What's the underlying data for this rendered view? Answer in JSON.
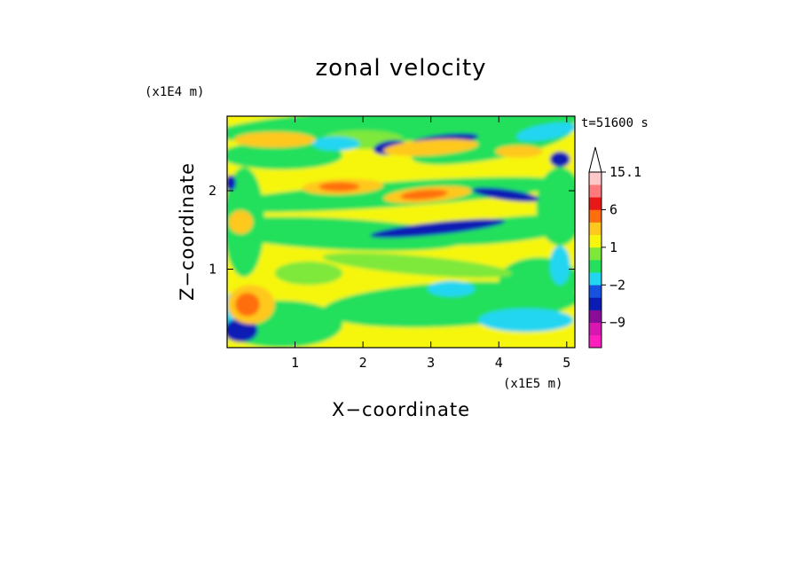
{
  "chart_data": {
    "type": "heatmap",
    "title": "zonal velocity",
    "xlabel": "X−coordinate",
    "ylabel": "Z−coordinate",
    "x_unit": "(x1E5 m)",
    "y_unit": "(x1E4 m)",
    "time_label": "t=51600 s",
    "xlim": [
      0,
      5.12
    ],
    "ylim": [
      0,
      2.95
    ],
    "x_ticks": [
      1,
      2,
      3,
      4,
      5
    ],
    "y_ticks": [
      1,
      2
    ],
    "colorbar": {
      "levels": [
        -12,
        -9,
        -6,
        -3,
        -2,
        -1,
        0,
        1,
        1.5,
        3,
        6,
        9,
        12,
        15.1
      ],
      "colors": [
        "#ff1fbf",
        "#d816b2",
        "#8a0d9a",
        "#0a1cb4",
        "#1652e0",
        "#22d6f2",
        "#24e05c",
        "#7ee83a",
        "#f6f60d",
        "#ffc81e",
        "#ff6e0e",
        "#e81818",
        "#ff7a7a",
        "#ffc8c8"
      ],
      "labels": [
        {
          "value": 15.1,
          "text": "15.1"
        },
        {
          "value": 6,
          "text": "6"
        },
        {
          "value": 1,
          "text": "1"
        },
        {
          "value": -2,
          "text": "−2"
        },
        {
          "value": -9,
          "text": "−9"
        }
      ],
      "extend": "max"
    },
    "field_pattern": "layered horizontal bands of positive (yellow/orange/red) and negative (green/cyan/blue) zonal velocity, alternating with height"
  }
}
